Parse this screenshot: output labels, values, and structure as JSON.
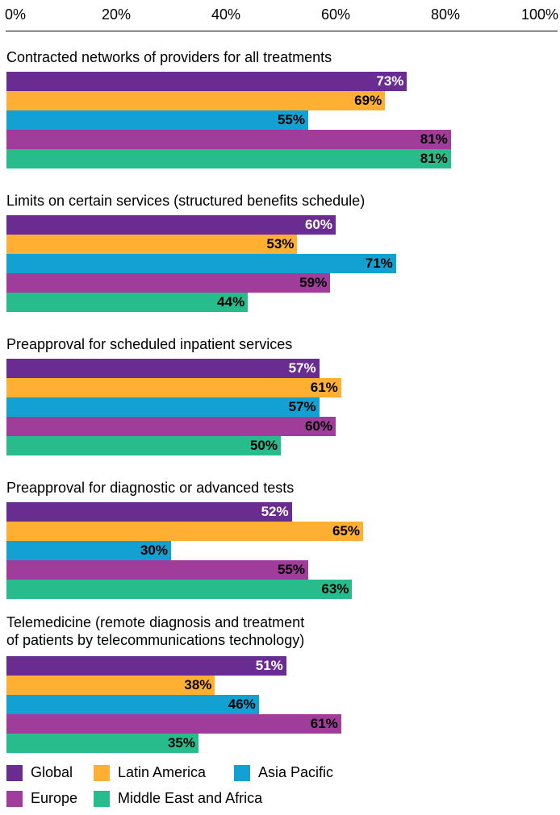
{
  "chart_data": {
    "type": "bar",
    "orientation": "horizontal",
    "xlim": [
      0,
      100
    ],
    "ticks": [
      "0%",
      "20%",
      "40%",
      "60%",
      "80%",
      "100%"
    ],
    "tick_values": [
      0,
      20,
      40,
      60,
      80,
      100
    ],
    "categories": [
      "Contracted networks of providers for all treatments",
      "Limits on certain services (structured benefits schedule)",
      "Preapproval for scheduled inpatient services",
      "Preapproval for diagnostic or advanced tests",
      "Telemedicine (remote diagnosis and treatment\nof patients by telecommunications technology)"
    ],
    "series": [
      {
        "name": "Global",
        "color": "#6b2c91",
        "label_color": "#ffffff",
        "values": [
          73,
          60,
          57,
          52,
          51
        ],
        "labels": [
          "73%",
          "60%",
          "57%",
          "52%",
          "51%"
        ]
      },
      {
        "name": "Latin America",
        "color": "#ffb032",
        "label_color": "#000000",
        "values": [
          69,
          53,
          61,
          65,
          38
        ],
        "labels": [
          "69%",
          "53%",
          "61%",
          "65%",
          "38%"
        ]
      },
      {
        "name": "Asia Pacific",
        "color": "#13a0d2",
        "label_color": "#000000",
        "values": [
          55,
          71,
          57,
          30,
          46
        ],
        "labels": [
          "55%",
          "71%",
          "57%",
          "30%",
          "46%"
        ]
      },
      {
        "name": "Europe",
        "color": "#a03c9a",
        "label_color": "#000000",
        "values": [
          81,
          59,
          60,
          55,
          61
        ],
        "labels": [
          "81%",
          "59%",
          "60%",
          "55%",
          "61%"
        ]
      },
      {
        "name": "Middle East and Africa",
        "color": "#28bb8c",
        "label_color": "#000000",
        "values": [
          81,
          44,
          50,
          63,
          35
        ],
        "labels": [
          "81%",
          "44%",
          "50%",
          "63%",
          "35%"
        ]
      }
    ],
    "legend": {
      "placement": "bottom"
    },
    "grid": false
  }
}
